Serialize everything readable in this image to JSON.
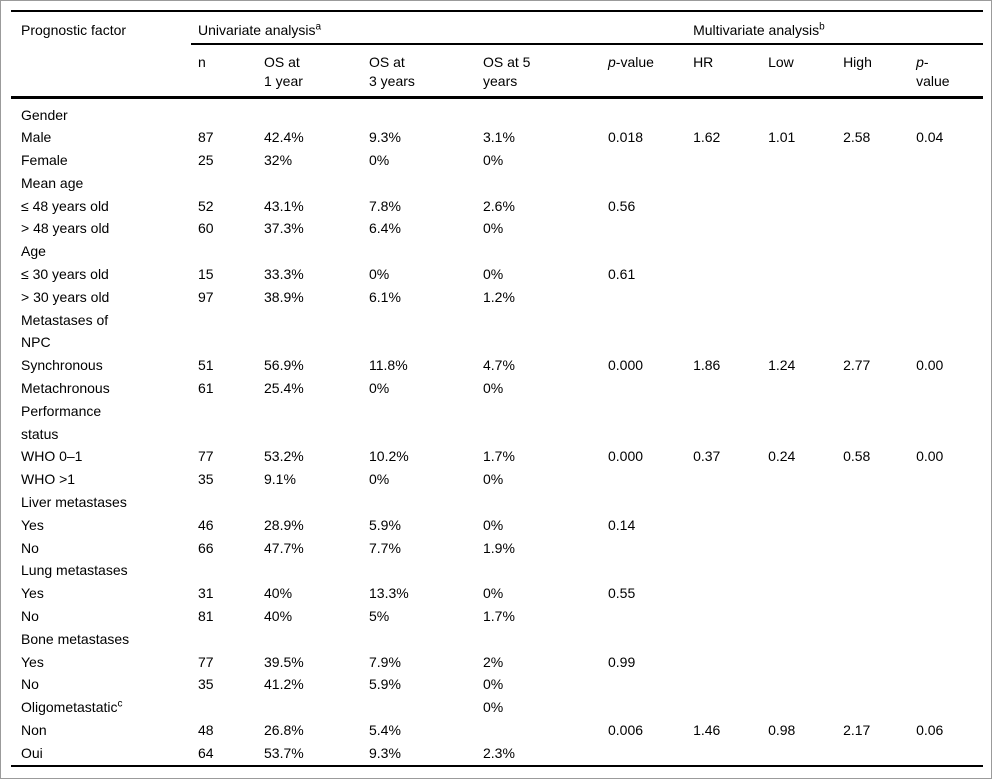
{
  "table": {
    "factor_header": "Prognostic factor",
    "univariate": {
      "label": "Univariate analysis",
      "sup": "a"
    },
    "multivariate": {
      "label": "Multivariate analysis",
      "sup": "b"
    },
    "columns": {
      "n": "n",
      "os1_line1": "OS at",
      "os1_line2": "1 year",
      "os3_line1": "OS at",
      "os3_line2": "3 years",
      "os5_line1": "OS at 5",
      "os5_line2": "years",
      "p_uni_italic": "p",
      "p_uni_rest": "-value",
      "hr": "HR",
      "low": "Low",
      "high": "High",
      "p_multi_italic": "p",
      "p_multi_rest": "-",
      "p_multi_line2": "value"
    },
    "column_names": [
      "n",
      "os-1-year",
      "os-3-years",
      "os-5-years",
      "p-value-univariate",
      "hr",
      "low",
      "high",
      "p-value-multivariate"
    ],
    "rows": [
      {
        "factor": "Gender",
        "section": true,
        "cells": [
          "",
          "",
          "",
          "",
          "",
          "",
          "",
          "",
          ""
        ]
      },
      {
        "factor": "Male",
        "section": false,
        "cells": [
          "87",
          "42.4%",
          "9.3%",
          "3.1%",
          "0.018",
          "1.62",
          "1.01",
          "2.58",
          "0.04"
        ]
      },
      {
        "factor": "Female",
        "section": false,
        "cells": [
          "25",
          "32%",
          "0%",
          "0%",
          "",
          "",
          "",
          "",
          ""
        ]
      },
      {
        "factor": "Mean age",
        "section": true,
        "cells": [
          "",
          "",
          "",
          "",
          "",
          "",
          "",
          "",
          ""
        ]
      },
      {
        "factor": "≤ 48 years old",
        "section": false,
        "cells": [
          "52",
          "43.1%",
          "7.8%",
          "2.6%",
          "0.56",
          "",
          "",
          "",
          ""
        ]
      },
      {
        "factor": "> 48 years old",
        "section": false,
        "cells": [
          "60",
          "37.3%",
          "6.4%",
          "0%",
          "",
          "",
          "",
          "",
          ""
        ]
      },
      {
        "factor": "Age",
        "section": true,
        "cells": [
          "",
          "",
          "",
          "",
          "",
          "",
          "",
          "",
          ""
        ]
      },
      {
        "factor": "≤ 30 years old",
        "section": false,
        "cells": [
          "15",
          "33.3%",
          "0%",
          "0%",
          "0.61",
          "",
          "",
          "",
          ""
        ]
      },
      {
        "factor": "> 30 years old",
        "section": false,
        "cells": [
          "97",
          "38.9%",
          "6.1%",
          "1.2%",
          "",
          "",
          "",
          "",
          ""
        ]
      },
      {
        "factor": "Metastases of\nNPC",
        "section": true,
        "cells": [
          "",
          "",
          "",
          "",
          "",
          "",
          "",
          "",
          ""
        ]
      },
      {
        "factor": "Synchronous",
        "section": false,
        "cells": [
          "51",
          "56.9%",
          "11.8%",
          "4.7%",
          "0.000",
          "1.86",
          "1.24",
          "2.77",
          "0.00"
        ]
      },
      {
        "factor": "Metachronous",
        "section": false,
        "cells": [
          "61",
          "25.4%",
          "0%",
          "0%",
          "",
          "",
          "",
          "",
          ""
        ]
      },
      {
        "factor": "Performance\nstatus",
        "section": true,
        "cells": [
          "",
          "",
          "",
          "",
          "",
          "",
          "",
          "",
          ""
        ]
      },
      {
        "factor": "WHO 0–1",
        "section": false,
        "cells": [
          "77",
          "53.2%",
          "10.2%",
          "1.7%",
          "0.000",
          "0.37",
          "0.24",
          "0.58",
          "0.00"
        ]
      },
      {
        "factor": "WHO >1",
        "section": false,
        "cells": [
          "35",
          "9.1%",
          "0%",
          "0%",
          "",
          "",
          "",
          "",
          ""
        ]
      },
      {
        "factor": "Liver metastases",
        "section": true,
        "cells": [
          "",
          "",
          "",
          "",
          "",
          "",
          "",
          "",
          ""
        ]
      },
      {
        "factor": "Yes",
        "section": false,
        "cells": [
          "46",
          "28.9%",
          "5.9%",
          "0%",
          "0.14",
          "",
          "",
          "",
          ""
        ]
      },
      {
        "factor": "No",
        "section": false,
        "cells": [
          "66",
          "47.7%",
          "7.7%",
          "1.9%",
          "",
          "",
          "",
          "",
          ""
        ]
      },
      {
        "factor": "Lung metastases",
        "section": true,
        "cells": [
          "",
          "",
          "",
          "",
          "",
          "",
          "",
          "",
          ""
        ]
      },
      {
        "factor": "Yes",
        "section": false,
        "cells": [
          "31",
          "40%",
          "13.3%",
          "0%",
          "0.55",
          "",
          "",
          "",
          ""
        ]
      },
      {
        "factor": "No",
        "section": false,
        "cells": [
          "81",
          "40%",
          "5%",
          "1.7%",
          "",
          "",
          "",
          "",
          ""
        ]
      },
      {
        "factor": "Bone metastases",
        "section": true,
        "cells": [
          "",
          "",
          "",
          "",
          "",
          "",
          "",
          "",
          ""
        ]
      },
      {
        "factor": "Yes",
        "section": false,
        "cells": [
          "77",
          "39.5%",
          "7.9%",
          "2%",
          "0.99",
          "",
          "",
          "",
          ""
        ]
      },
      {
        "factor": "No",
        "section": false,
        "cells": [
          "35",
          "41.2%",
          "5.9%",
          "0%",
          "",
          "",
          "",
          "",
          ""
        ]
      },
      {
        "factor": "Oligometastatic",
        "sup": "c",
        "section": true,
        "cells": [
          "",
          "",
          "",
          "0%",
          "",
          "",
          "",
          "",
          ""
        ]
      },
      {
        "factor": "Non",
        "section": false,
        "cells": [
          "48",
          "26.8%",
          "5.4%",
          "",
          "0.006",
          "1.46",
          "0.98",
          "2.17",
          "0.06"
        ]
      },
      {
        "factor": "Oui",
        "section": false,
        "cells": [
          "64",
          "53.7%",
          "9.3%",
          "2.3%",
          "",
          "",
          "",
          "",
          ""
        ]
      }
    ]
  }
}
